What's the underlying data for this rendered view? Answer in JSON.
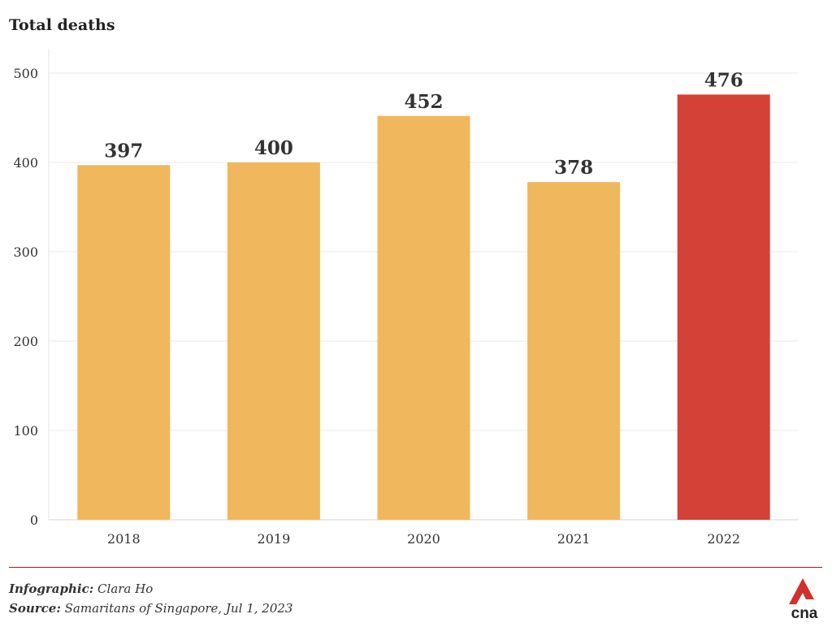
{
  "chart_data": {
    "type": "bar",
    "title": "Total deaths",
    "categories": [
      "2018",
      "2019",
      "2020",
      "2021",
      "2022"
    ],
    "values": [
      397,
      400,
      452,
      378,
      476
    ],
    "data_labels": [
      "397",
      "400",
      "452",
      "378",
      "476"
    ],
    "ylim": [
      0,
      500
    ],
    "yticks": [
      0,
      100,
      200,
      300,
      400,
      500
    ],
    "xlabel": "",
    "ylabel": "",
    "grid": true,
    "legend": "none",
    "colors": {
      "default_bar": "#F1B75C",
      "highlight_bar": "#D44136",
      "highlight_category": "2022"
    }
  },
  "footer": {
    "infographic_label": "Infographic:",
    "infographic_value": "Clara Ho",
    "source_label": "Source:",
    "source_value": "Samaritans of Singapore, Jul 1, 2023",
    "logo_text": "cna",
    "logo_icon": "cna-logo-icon",
    "rule_color": "#8A2020",
    "logo_color": "#D0312D"
  }
}
